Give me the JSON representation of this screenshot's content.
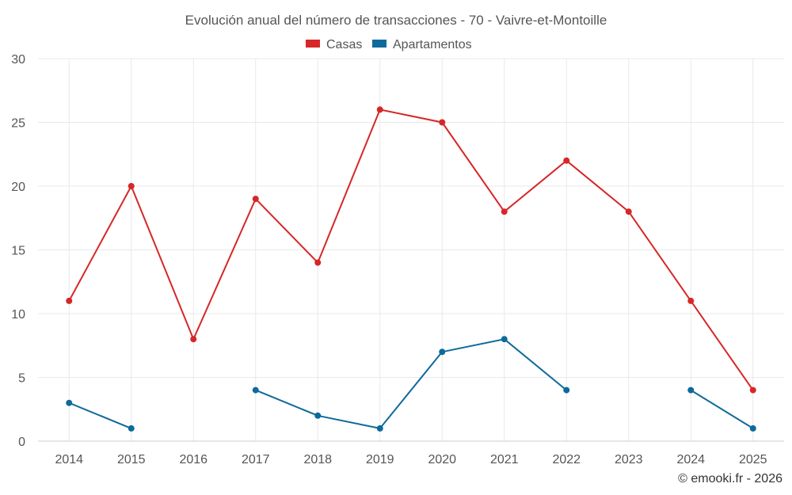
{
  "chart_data": {
    "type": "line",
    "title": "Evolución anual del número de transacciones - 70 - Vaivre-et-Montoille",
    "categories": [
      "2014",
      "2015",
      "2016",
      "2017",
      "2018",
      "2019",
      "2020",
      "2021",
      "2022",
      "2023",
      "2024",
      "2025"
    ],
    "series": [
      {
        "name": "Casas",
        "color": "#d62728",
        "values": [
          11,
          20,
          8,
          19,
          14,
          26,
          25,
          18,
          22,
          18,
          11,
          4
        ]
      },
      {
        "name": "Apartamentos",
        "color": "#0e6a9b",
        "values": [
          3,
          1,
          null,
          4,
          2,
          1,
          7,
          8,
          4,
          null,
          4,
          1
        ]
      }
    ],
    "ylim": [
      0,
      30
    ],
    "yticks": [
      "0",
      "5",
      "10",
      "15",
      "20",
      "25",
      "30"
    ],
    "xlabel": "",
    "ylabel": "",
    "grid": true,
    "legend_position": "top-center"
  },
  "credit": "© emooki.fr - 2026"
}
